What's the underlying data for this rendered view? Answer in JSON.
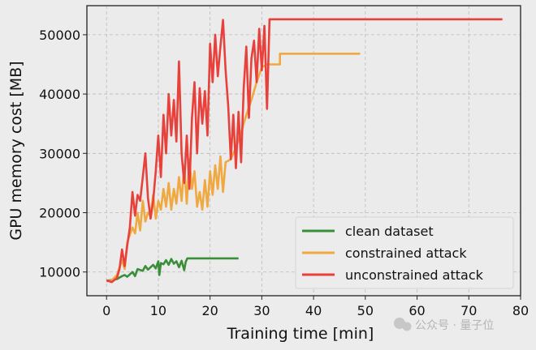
{
  "chart_data": {
    "type": "line",
    "title": "",
    "xlabel": "Training time [min]",
    "ylabel": "GPU memory cost [MB]",
    "xlim": [
      -3.8,
      80
    ],
    "ylim": [
      6000,
      54900
    ],
    "xticks": [
      0,
      10,
      20,
      30,
      40,
      50,
      60,
      70,
      80
    ],
    "yticks": [
      10000,
      20000,
      30000,
      40000,
      50000
    ],
    "grid": true,
    "legend_position": "bottom-right",
    "series": [
      {
        "name": "clean dataset",
        "color": "#3a8e3a",
        "points": [
          [
            0,
            8500
          ],
          [
            2,
            8800
          ],
          [
            3,
            9300
          ],
          [
            3.5,
            9500
          ],
          [
            4,
            9200
          ],
          [
            5,
            10000
          ],
          [
            5.5,
            9300
          ],
          [
            6,
            10500
          ],
          [
            7,
            10200
          ],
          [
            7.5,
            11000
          ],
          [
            8,
            10400
          ],
          [
            9,
            11200
          ],
          [
            9.5,
            10600
          ],
          [
            10,
            11800
          ],
          [
            10.2,
            9500
          ],
          [
            10.5,
            11500
          ],
          [
            11,
            11300
          ],
          [
            11.5,
            12000
          ],
          [
            12,
            11200
          ],
          [
            12.5,
            12200
          ],
          [
            13,
            11400
          ],
          [
            13.5,
            11800
          ],
          [
            14,
            10800
          ],
          [
            14.5,
            11900
          ],
          [
            15,
            10300
          ],
          [
            15.3,
            11700
          ],
          [
            15.6,
            12300
          ],
          [
            25.5,
            12300
          ]
        ]
      },
      {
        "name": "constrained attack",
        "color": "#f0a840",
        "points": [
          [
            0,
            8400
          ],
          [
            1,
            8600
          ],
          [
            2,
            9500
          ],
          [
            3,
            12000
          ],
          [
            3.5,
            10500
          ],
          [
            4,
            15000
          ],
          [
            5,
            17500
          ],
          [
            5.5,
            16500
          ],
          [
            6,
            20000
          ],
          [
            6.5,
            17000
          ],
          [
            7,
            22000
          ],
          [
            7.5,
            18500
          ],
          [
            8,
            20000
          ],
          [
            8.5,
            19500
          ],
          [
            9,
            23000
          ],
          [
            9.5,
            19000
          ],
          [
            10,
            22000
          ],
          [
            10.5,
            20500
          ],
          [
            11,
            24000
          ],
          [
            11.5,
            21000
          ],
          [
            12,
            25000
          ],
          [
            12.5,
            20500
          ],
          [
            13,
            24000
          ],
          [
            13.5,
            21500
          ],
          [
            14,
            26000
          ],
          [
            14.5,
            22000
          ],
          [
            15,
            28000
          ],
          [
            15.5,
            21500
          ],
          [
            16,
            29000
          ],
          [
            16.5,
            24000
          ],
          [
            17,
            27000
          ],
          [
            17.5,
            21000
          ],
          [
            18,
            23500
          ],
          [
            18.5,
            20500
          ],
          [
            19,
            25500
          ],
          [
            19.5,
            21000
          ],
          [
            20,
            27000
          ],
          [
            20.5,
            23000
          ],
          [
            21,
            28000
          ],
          [
            21.5,
            24000
          ],
          [
            22,
            29500
          ],
          [
            22.5,
            23500
          ],
          [
            23,
            28500
          ],
          [
            24,
            29000
          ],
          [
            25,
            31000
          ],
          [
            26,
            33500
          ],
          [
            27,
            36500
          ],
          [
            28,
            39000
          ],
          [
            29,
            42000
          ],
          [
            30,
            44500
          ],
          [
            31,
            45000
          ],
          [
            33.5,
            45000
          ],
          [
            33.5,
            46800
          ],
          [
            49,
            46800
          ]
        ]
      },
      {
        "name": "unconstrained attack",
        "color": "#e8413c",
        "points": [
          [
            0,
            8600
          ],
          [
            1,
            8300
          ],
          [
            2,
            9000
          ],
          [
            2.5,
            10500
          ],
          [
            3,
            13800
          ],
          [
            3.5,
            11000
          ],
          [
            4,
            14500
          ],
          [
            4.5,
            17500
          ],
          [
            5,
            23500
          ],
          [
            5.5,
            19500
          ],
          [
            6,
            23000
          ],
          [
            6.5,
            22000
          ],
          [
            7,
            26000
          ],
          [
            7.5,
            30000
          ],
          [
            8,
            22500
          ],
          [
            8.5,
            19000
          ],
          [
            9,
            22000
          ],
          [
            9.5,
            27000
          ],
          [
            10,
            33000
          ],
          [
            10.5,
            26000
          ],
          [
            11,
            36500
          ],
          [
            11.5,
            30000
          ],
          [
            12,
            40000
          ],
          [
            12.5,
            33000
          ],
          [
            13,
            39000
          ],
          [
            13.5,
            32000
          ],
          [
            14,
            45500
          ],
          [
            14.5,
            30000
          ],
          [
            15,
            25000
          ],
          [
            15.5,
            33000
          ],
          [
            16,
            24000
          ],
          [
            16.5,
            36000
          ],
          [
            17,
            42000
          ],
          [
            17.5,
            30000
          ],
          [
            18,
            41000
          ],
          [
            18.5,
            35000
          ],
          [
            19,
            40500
          ],
          [
            19.5,
            33000
          ],
          [
            20,
            48500
          ],
          [
            20.5,
            42000
          ],
          [
            21,
            50000
          ],
          [
            21.5,
            43000
          ],
          [
            22,
            48000
          ],
          [
            22.5,
            52500
          ],
          [
            23,
            44000
          ],
          [
            23.5,
            38000
          ],
          [
            24,
            29000
          ],
          [
            24.5,
            36500
          ],
          [
            25,
            27500
          ],
          [
            25.5,
            37000
          ],
          [
            26,
            28500
          ],
          [
            26.5,
            41000
          ],
          [
            27,
            48000
          ],
          [
            27.5,
            36000
          ],
          [
            28,
            46000
          ],
          [
            28.5,
            49000
          ],
          [
            29,
            42000
          ],
          [
            29.5,
            51000
          ],
          [
            30,
            44000
          ],
          [
            30.5,
            51500
          ],
          [
            31,
            37500
          ],
          [
            31.5,
            52600
          ],
          [
            76.5,
            52600
          ]
        ]
      }
    ]
  },
  "watermark": "公众号 · 量子位"
}
